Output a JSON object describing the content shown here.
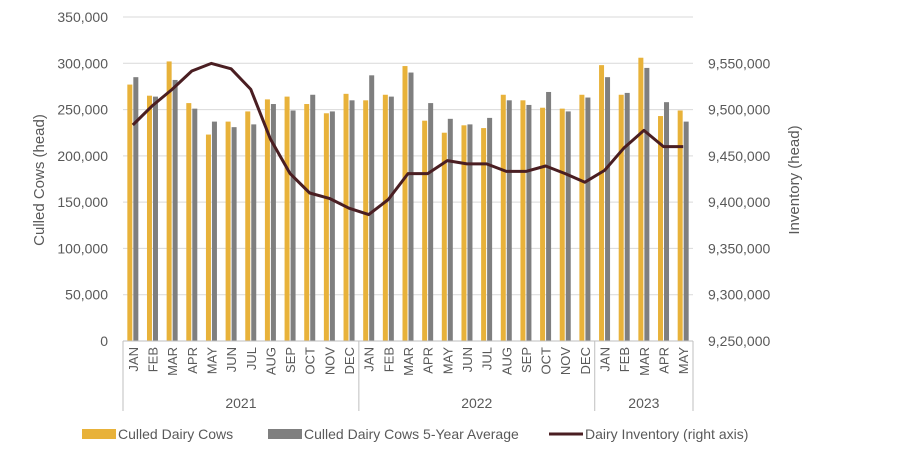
{
  "chart_data": {
    "type": "bar",
    "title": "",
    "months": [
      "JAN",
      "FEB",
      "MAR",
      "APR",
      "MAY",
      "JUN",
      "JUL",
      "AUG",
      "SEP",
      "OCT",
      "NOV",
      "DEC",
      "JAN",
      "FEB",
      "MAR",
      "APR",
      "MAY",
      "JUN",
      "JUL",
      "AUG",
      "SEP",
      "OCT",
      "NOV",
      "DEC",
      "JAN",
      "FEB",
      "MAR",
      "APR",
      "MAY"
    ],
    "years": [
      {
        "label": "2021",
        "start": 0,
        "count": 12
      },
      {
        "label": "2022",
        "start": 12,
        "count": 12
      },
      {
        "label": "2023",
        "start": 24,
        "count": 5
      }
    ],
    "ylabel_left": "Culled Cows (head)",
    "ylabel_right": "Inventory (head)",
    "ylim_left": [
      0,
      350000
    ],
    "ylim_right": [
      9250000,
      9550000
    ],
    "yticks_left": [
      "0",
      "50,000",
      "100,000",
      "150,000",
      "200,000",
      "250,000",
      "300,000",
      "350,000"
    ],
    "yticks_right": [
      "9,250,000",
      "9,300,000",
      "9,350,000",
      "9,400,000",
      "9,450,000",
      "9,500,000",
      "9,550,000"
    ],
    "grid": true,
    "legend_position": "bottom",
    "series": [
      {
        "name": "Culled Dairy Cows",
        "kind": "bar",
        "axis": "left",
        "color": "#E8B23A",
        "values": [
          277000,
          265000,
          302000,
          257000,
          223000,
          237000,
          248000,
          261000,
          264000,
          256000,
          246000,
          267000,
          260000,
          266000,
          297000,
          238000,
          225000,
          233000,
          230000,
          266000,
          260000,
          252000,
          251000,
          266000,
          298000,
          266000,
          306000,
          243000,
          249000
        ]
      },
      {
        "name": "Culled Dairy Cows 5-Year Average",
        "kind": "bar",
        "axis": "left",
        "color": "#7F7F7F",
        "values": [
          285000,
          264000,
          282000,
          251000,
          237000,
          231000,
          234000,
          256000,
          249000,
          266000,
          248000,
          260000,
          287000,
          264000,
          290000,
          257000,
          240000,
          234000,
          241000,
          260000,
          255000,
          269000,
          248000,
          263000,
          285000,
          268000,
          295000,
          258000,
          237000
        ]
      },
      {
        "name": "Dairy Inventory (right axis)",
        "kind": "line",
        "axis": "right",
        "color": "#4A1E22",
        "values": [
          9450000,
          9468000,
          9483000,
          9500000,
          9507000,
          9502000,
          9483000,
          9437000,
          9405000,
          9387000,
          9382000,
          9373000,
          9367000,
          9381000,
          9405000,
          9405000,
          9417000,
          9414000,
          9414000,
          9407000,
          9407000,
          9412000,
          9405000,
          9397000,
          9408000,
          9429000,
          9445000,
          9430000,
          9430000
        ]
      }
    ]
  }
}
